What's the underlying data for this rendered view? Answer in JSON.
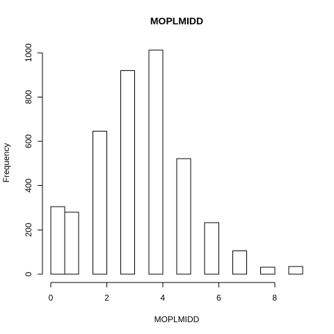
{
  "chart_data": {
    "type": "bar",
    "title": "MOPLMIDD",
    "xlabel": "MOPLMIDD",
    "ylabel": "Frequency",
    "bins": [
      {
        "x0": 0.0,
        "x1": 0.5,
        "count": 305
      },
      {
        "x0": 0.5,
        "x1": 1.0,
        "count": 280
      },
      {
        "x0": 1.0,
        "x1": 1.5,
        "count": 0
      },
      {
        "x0": 1.5,
        "x1": 2.0,
        "count": 646
      },
      {
        "x0": 2.0,
        "x1": 2.5,
        "count": 0
      },
      {
        "x0": 2.5,
        "x1": 3.0,
        "count": 919
      },
      {
        "x0": 3.0,
        "x1": 3.5,
        "count": 0
      },
      {
        "x0": 3.5,
        "x1": 4.0,
        "count": 1012
      },
      {
        "x0": 4.0,
        "x1": 4.5,
        "count": 0
      },
      {
        "x0": 4.5,
        "x1": 5.0,
        "count": 521
      },
      {
        "x0": 5.0,
        "x1": 5.5,
        "count": 0
      },
      {
        "x0": 5.5,
        "x1": 6.0,
        "count": 232
      },
      {
        "x0": 6.0,
        "x1": 6.5,
        "count": 0
      },
      {
        "x0": 6.5,
        "x1": 7.0,
        "count": 106
      },
      {
        "x0": 7.0,
        "x1": 7.5,
        "count": 0
      },
      {
        "x0": 7.5,
        "x1": 8.0,
        "count": 32
      },
      {
        "x0": 8.0,
        "x1": 8.5,
        "count": 0
      },
      {
        "x0": 8.5,
        "x1": 9.0,
        "count": 34
      }
    ],
    "xlim": [
      0,
      9
    ],
    "ylim": [
      0,
      1012
    ],
    "x_ticks": [
      0,
      2,
      4,
      6,
      8
    ],
    "y_ticks": [
      0,
      200,
      400,
      600,
      800,
      1000
    ],
    "grid": false
  }
}
